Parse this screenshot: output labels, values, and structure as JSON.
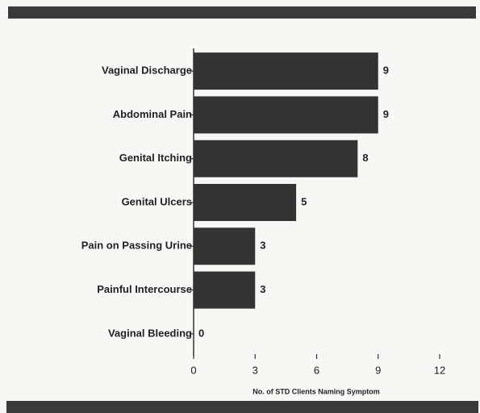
{
  "chart_data": {
    "type": "bar",
    "orientation": "horizontal",
    "categories": [
      "Vaginal Discharge",
      "Abdominal Pain",
      "Genital Itching",
      "Genital Ulcers",
      "Pain on Passing Urine",
      "Painful Intercourse",
      "Vaginal Bleeding"
    ],
    "values": [
      9,
      9,
      8,
      5,
      3,
      3,
      0
    ],
    "color": "#333333",
    "xlabel": "No. of STD Clients Naming Symptom",
    "xlim": [
      0,
      12
    ],
    "xticks": [
      0,
      3,
      6,
      9,
      12
    ]
  }
}
